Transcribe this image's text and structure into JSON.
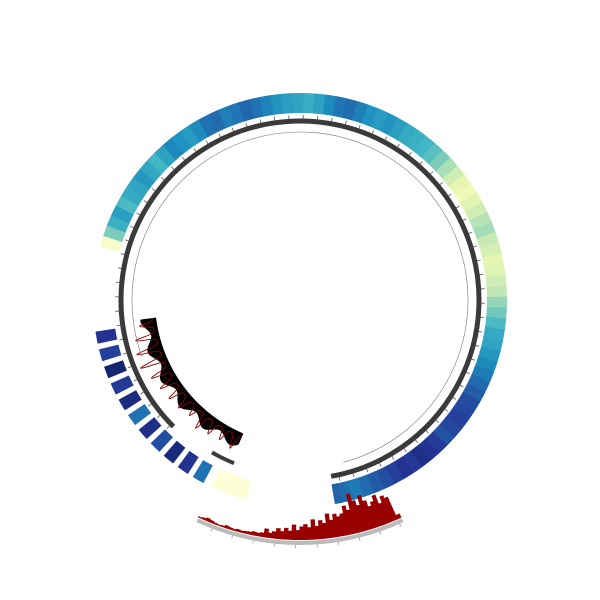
{
  "chart_data": {
    "type": "heatmap",
    "title": "",
    "description_note": "",
    "colormap": [
      "#081d58",
      "#253494",
      "#225ea8",
      "#1d91c0",
      "#41b6c4",
      "#7fcdbb",
      "#c7e9b4",
      "#edf8b1",
      "#ffffd9"
    ],
    "heat_ring": {
      "value_range": [
        0,
        1
      ],
      "main_arc_values": [
        0.95,
        0.62,
        0.48,
        0.42,
        0.52,
        0.46,
        0.44,
        0.4,
        0.45,
        0.5,
        0.43,
        0.35,
        0.38,
        0.41,
        0.36,
        0.3,
        0.28,
        0.33,
        0.31,
        0.27,
        0.3,
        0.34,
        0.39,
        0.42,
        0.44,
        0.47,
        0.43,
        0.36,
        0.31,
        0.29,
        0.33,
        0.38,
        0.41,
        0.39,
        0.42,
        0.46,
        0.48,
        0.5,
        0.55,
        0.62,
        0.7,
        0.78,
        0.86,
        0.9,
        0.84,
        0.78,
        0.72,
        0.69,
        0.75,
        0.8,
        0.85,
        0.83,
        0.78,
        0.74,
        0.66,
        0.6,
        0.52,
        0.46,
        0.44,
        0.4,
        0.36,
        0.32,
        0.28,
        0.24,
        0.2,
        0.18,
        0.16,
        0.18,
        0.22,
        0.15,
        0.12,
        0.1,
        0.14,
        0.12,
        0.16,
        0.2,
        0.24,
        0.28,
        0.32
      ],
      "lower_left_values": [
        0.3,
        0.12,
        0.07,
        0.2,
        0.1,
        0.3,
        0.08,
        0.14,
        0.05,
        0.16,
        0.12
      ],
      "bottom_left_value": 0.99
    },
    "peak_track": {
      "peaks": [
        0.55,
        0.45,
        0.5,
        0.6,
        0.4,
        0.5,
        0.55,
        0.6,
        0.7,
        0.9,
        0.85,
        0.75,
        0.5
      ]
    },
    "bottom_histogram": {
      "values": [
        0.1,
        0.55,
        0.62,
        0.48,
        0.7,
        0.58,
        0.5,
        0.65,
        0.8,
        0.6,
        0.72,
        0.9,
        0.55,
        0.66,
        0.5,
        0.45,
        0.52,
        0.4,
        0.55,
        0.35,
        0.42,
        0.3,
        0.45,
        0.28,
        0.35,
        0.3,
        0.22,
        0.34,
        0.2,
        0.26,
        0.18,
        0.24,
        0.16,
        0.12,
        0.2,
        0.1,
        0.08,
        0.09,
        0.07,
        0.06,
        0.05,
        0.06,
        0.04,
        0.05,
        0.07,
        0.04,
        0.03,
        0.04,
        0.06,
        0.08,
        0.05,
        0.03
      ]
    }
  }
}
